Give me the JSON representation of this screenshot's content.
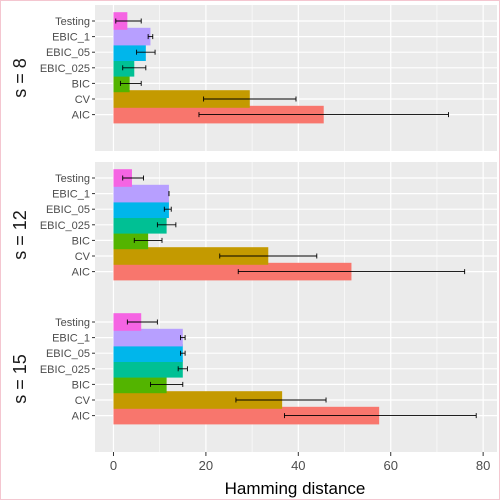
{
  "chart_data": {
    "type": "bar",
    "orientation": "horizontal",
    "xlabel": "Hamming distance",
    "xlim": [
      -4,
      83
    ],
    "x_ticks": [
      0,
      20,
      40,
      60,
      80
    ],
    "grid": true,
    "legend": "none",
    "facet_order": [
      "s = 8",
      "s = 12",
      "s = 15"
    ],
    "categories": [
      "Testing",
      "EBIC_1",
      "EBIC_05",
      "EBIC_025",
      "BIC",
      "CV",
      "AIC"
    ],
    "colors": {
      "Testing": "#F564E3",
      "EBIC_1": "#B79FFF",
      "EBIC_05": "#00B6EB",
      "EBIC_025": "#00C094",
      "BIC": "#53B400",
      "CV": "#C49A00",
      "AIC": "#F8766D"
    },
    "panels": [
      {
        "label": "s = 8",
        "values": [
          3,
          8,
          7,
          4.5,
          3.5,
          29.5,
          45.5
        ],
        "errors": [
          [
            0.5,
            6
          ],
          [
            7.5,
            8.5
          ],
          [
            5,
            9
          ],
          [
            2,
            7
          ],
          [
            1.5,
            6
          ],
          [
            19.5,
            39.5
          ],
          [
            18.5,
            72.5
          ]
        ]
      },
      {
        "label": "s = 12",
        "values": [
          4,
          12,
          12,
          11.5,
          7.5,
          33.5,
          51.5
        ],
        "errors": [
          [
            2,
            6.5
          ],
          [
            12,
            12
          ],
          [
            11,
            12.5
          ],
          [
            9.5,
            13.5
          ],
          [
            4.5,
            10.5
          ],
          [
            23,
            44
          ],
          [
            27,
            76
          ]
        ]
      },
      {
        "label": "s = 15",
        "values": [
          6,
          15,
          15,
          15,
          11.5,
          36.5,
          57.5
        ],
        "errors": [
          [
            3,
            9.5
          ],
          [
            14.5,
            15.5
          ],
          [
            14.5,
            15.5
          ],
          [
            14,
            16
          ],
          [
            8,
            15
          ],
          [
            26.5,
            46
          ],
          [
            37,
            78.5
          ]
        ]
      }
    ]
  }
}
